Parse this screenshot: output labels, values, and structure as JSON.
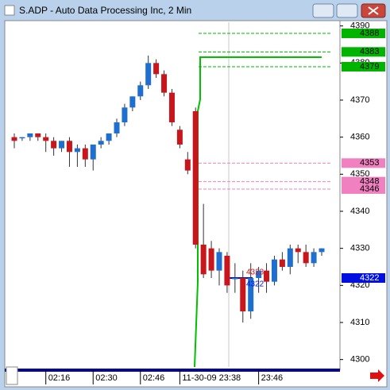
{
  "window_title": "S.ADP - Auto Data Processing Inc, 2 Min",
  "chart_data": {
    "type": "candlestick",
    "categories": [
      null,
      null,
      null,
      null,
      "02:16",
      null,
      null,
      null,
      null,
      null,
      "02:30",
      null,
      null,
      null,
      null,
      null,
      "02:46",
      null,
      null,
      null,
      null,
      "11-30-09  23:38",
      null,
      null,
      null,
      null,
      null,
      null,
      null,
      null,
      null,
      "23:46",
      null,
      null,
      null,
      null,
      null,
      null,
      null,
      null
    ],
    "open": [
      4360,
      4360,
      4360,
      4361,
      4360,
      4359,
      4357,
      4359,
      4356,
      4357,
      4354,
      4358,
      4359,
      4361,
      4364,
      4368,
      4371,
      4374,
      4380,
      4377,
      4372,
      4362,
      4354,
      4367,
      4331,
      4330,
      4324,
      4328,
      4322,
      4322,
      4313,
      4322,
      4324,
      4321,
      4327,
      4325,
      4330,
      4329,
      4326,
      4329
    ],
    "high": [
      4361,
      4360,
      4361,
      4361,
      4361,
      4360,
      4359,
      4360,
      4358,
      4358,
      4358,
      4360,
      4361,
      4365,
      4369,
      4371,
      4375,
      4382,
      4381,
      4378,
      4373,
      4363,
      4356,
      4368,
      4342,
      4332,
      4330,
      4329,
      4326,
      4324,
      4326,
      4325,
      4326,
      4328,
      4329,
      4331,
      4331,
      4331,
      4330,
      4330
    ],
    "low": [
      4357,
      4359,
      4359,
      4359,
      4356,
      4355,
      4356,
      4352,
      4352,
      4352,
      4351,
      4357,
      4358,
      4360,
      4363,
      4367,
      4370,
      4373,
      4376,
      4371,
      4363,
      4357,
      4350,
      4330,
      4322,
      4322,
      4320,
      4318,
      4318,
      4310,
      4311,
      4318,
      4318,
      4320,
      4324,
      4323,
      4326,
      4325,
      4325,
      4328
    ],
    "close": [
      4359,
      4360,
      4361,
      4360,
      4359,
      4357,
      4359,
      4356,
      4357,
      4354,
      4358,
      4359,
      4361,
      4364,
      4368,
      4371,
      4374,
      4380,
      4377,
      4372,
      4364,
      4358,
      4351,
      4331,
      4323,
      4324,
      4329,
      4320,
      4322,
      4313,
      4322,
      4324,
      4321,
      4327,
      4325,
      4330,
      4329,
      4326,
      4329,
      4330
    ],
    "up_color": "#1f6fd1",
    "down_color": "#c8161c",
    "ylim": [
      4298,
      4391
    ],
    "yticks": [
      4300,
      4310,
      4320,
      4330,
      4340,
      4350,
      4360,
      4370,
      4380,
      4390
    ],
    "levels": [
      {
        "value": 4388,
        "color": "#00b400"
      },
      {
        "value": 4383,
        "color": "#00b400"
      },
      {
        "value": 4379,
        "color": "#00b400"
      },
      {
        "value": 4353,
        "color": "#f080c0"
      },
      {
        "value": 4348,
        "color": "#f080c0"
      },
      {
        "value": 4346,
        "color": "#f080c0"
      },
      {
        "value": 4322,
        "color": "#0010e0"
      }
    ],
    "annotations": [
      "4323",
      "4322"
    ]
  }
}
